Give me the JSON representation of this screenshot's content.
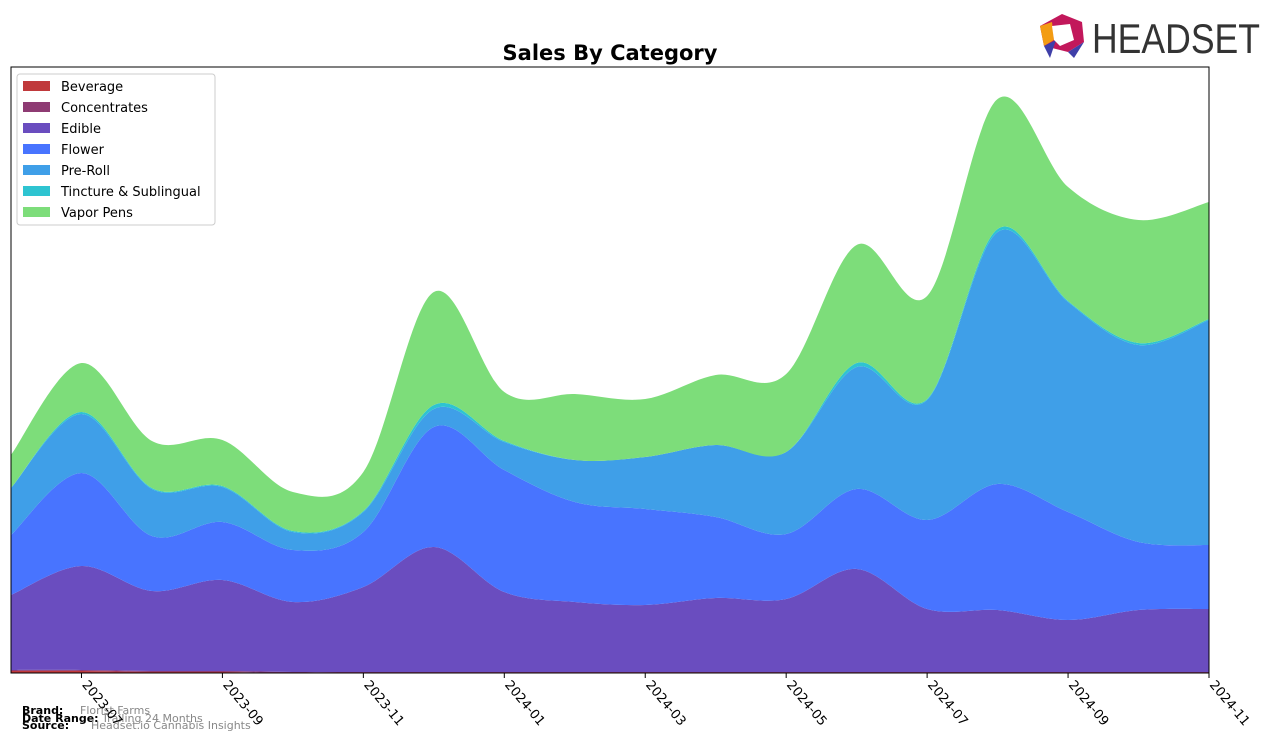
{
  "chart_data": {
    "type": "stacked-area",
    "title": "Sales By Category",
    "x": [
      "2023-06",
      "2023-07",
      "2023-08",
      "2023-09",
      "2023-10",
      "2023-11",
      "2023-12",
      "2024-01",
      "2024-02",
      "2024-03",
      "2024-04",
      "2024-05",
      "2024-06",
      "2024-07",
      "2024-08",
      "2024-09",
      "2024-10",
      "2024-11"
    ],
    "xticks": [
      "2023-07",
      "2023-09",
      "2023-11",
      "2024-01",
      "2024-03",
      "2024-05",
      "2024-07",
      "2024-09",
      "2024-11"
    ],
    "ylim": [
      0,
      606
    ],
    "legend": "upper left",
    "series": [
      {
        "name": "Beverage",
        "color": "#c0393b",
        "values": [
          2,
          2,
          1,
          1,
          0,
          0,
          0,
          0,
          0,
          0,
          0,
          0,
          0,
          0,
          0,
          0,
          0,
          0
        ]
      },
      {
        "name": "Concentrates",
        "color": "#8e3b73",
        "values": [
          1,
          1,
          1,
          1,
          1,
          1,
          1,
          1,
          1,
          1,
          1,
          1,
          1,
          1,
          1,
          1,
          1,
          1
        ]
      },
      {
        "name": "Edible",
        "color": "#6a4dbf",
        "values": [
          75,
          104,
          80,
          91,
          70,
          85,
          125,
          80,
          70,
          67,
          74,
          73,
          103,
          63,
          62,
          52,
          62,
          63
        ]
      },
      {
        "name": "Flower",
        "color": "#4874ff",
        "values": [
          60,
          93,
          55,
          58,
          52,
          55,
          120,
          122,
          100,
          96,
          81,
          65,
          80,
          89,
          126,
          108,
          68,
          64
        ]
      },
      {
        "name": "Pre-Roll",
        "color": "#3f9fe8",
        "values": [
          47,
          59,
          47,
          35,
          18,
          20,
          18,
          28,
          42,
          52,
          72,
          82,
          122,
          120,
          252,
          210,
          197,
          225
        ]
      },
      {
        "name": "Tincture & Sublingual",
        "color": "#2ec4d1",
        "values": [
          0,
          2,
          1,
          1,
          1,
          1,
          4,
          1,
          0,
          0,
          0,
          0,
          4,
          1,
          3,
          1,
          2,
          1
        ]
      },
      {
        "name": "Vapor Pens",
        "color": "#7ddd7a",
        "values": [
          33,
          49,
          47,
          46,
          39,
          39,
          113,
          49,
          66,
          58,
          70,
          78,
          118,
          103,
          130,
          114,
          123,
          117
        ]
      }
    ]
  },
  "logo": "HEADSET",
  "footer": {
    "brand_label": "Brand:",
    "brand": "Florist Farms",
    "date_label": "Date Range:",
    "date": "Trailing 24 Months",
    "source_label": "Source:",
    "source": "Headset.io Cannabis Insights"
  }
}
